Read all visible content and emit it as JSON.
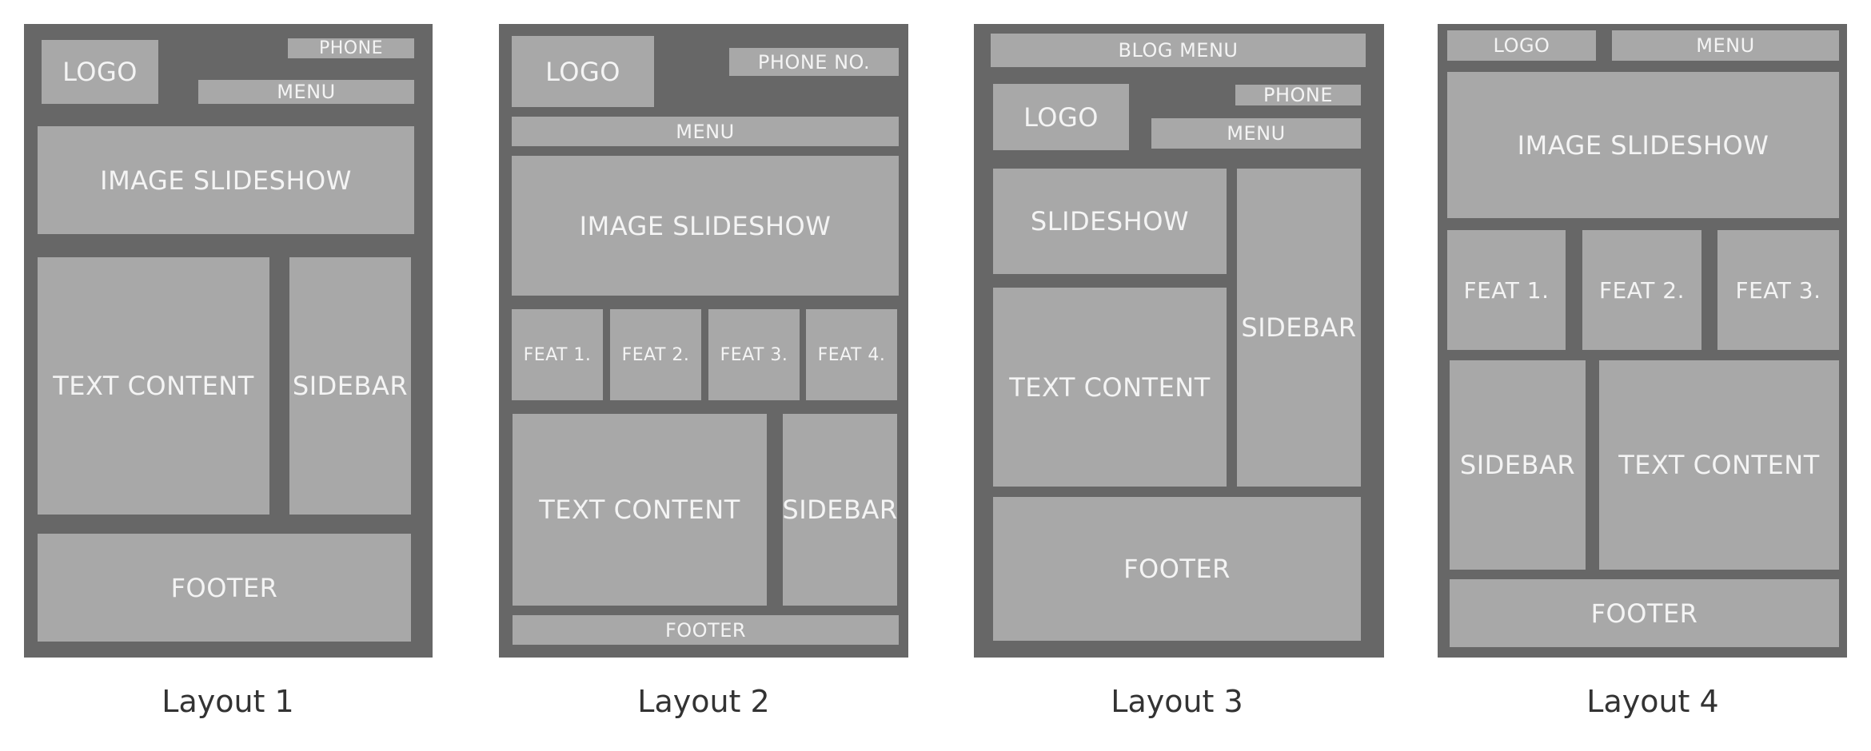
{
  "colors": {
    "frame": "#676767",
    "block": "#a8a8a8",
    "block_text": "#f4f4f4",
    "caption_text": "#333333",
    "background": "#ffffff"
  },
  "layouts": [
    {
      "caption": "Layout 1",
      "logo": "LOGO",
      "phone": "PHONE",
      "menu": "MENU",
      "slideshow": "IMAGE SLIDESHOW",
      "text_content": "TEXT CONTENT",
      "sidebar": "SIDEBAR",
      "footer": "FOOTER"
    },
    {
      "caption": "Layout 2",
      "logo": "LOGO",
      "phone": "PHONE NO.",
      "menu": "MENU",
      "slideshow": "IMAGE SLIDESHOW",
      "features": [
        "FEAT 1.",
        "FEAT 2.",
        "FEAT 3.",
        "FEAT 4."
      ],
      "text_content": "TEXT CONTENT",
      "sidebar": "SIDEBAR",
      "footer": "FOOTER"
    },
    {
      "caption": "Layout 3",
      "blog_menu": "BLOG MENU",
      "logo": "LOGO",
      "phone": "PHONE",
      "menu": "MENU",
      "slideshow": "SLIDESHOW",
      "sidebar": "SIDEBAR",
      "text_content": "TEXT CONTENT",
      "footer": "FOOTER"
    },
    {
      "caption": "Layout 4",
      "logo": "LOGO",
      "menu": "MENU",
      "slideshow": "IMAGE SLIDESHOW",
      "features": [
        "FEAT 1.",
        "FEAT 2.",
        "FEAT 3."
      ],
      "sidebar": "SIDEBAR",
      "text_content": "TEXT CONTENT",
      "footer": "FOOTER"
    }
  ]
}
